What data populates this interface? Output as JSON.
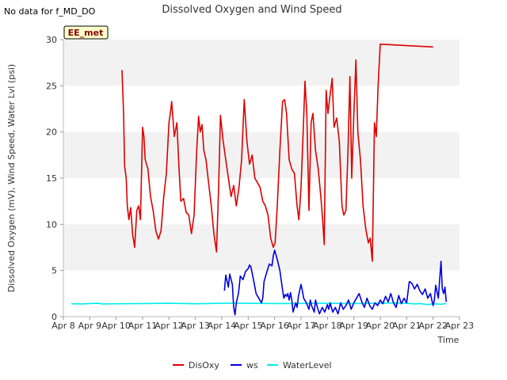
{
  "page": {
    "nodata_text": "No data for f_MD_DO",
    "badge_label": "EE_met"
  },
  "chart_data": {
    "type": "line",
    "title": "Dissolved Oxygen and Wind Speed",
    "xlabel": "Time",
    "ylabel": "Dissolved Oxygen (mV), Wind Speed, Water Lvl (psi)",
    "xlim": [
      8,
      23
    ],
    "ylim": [
      0,
      30
    ],
    "x_ticks": [
      8,
      9,
      10,
      11,
      12,
      13,
      14,
      15,
      16,
      17,
      18,
      19,
      20,
      21,
      22,
      23
    ],
    "x_tick_labels": [
      "Apr 8",
      "Apr 9",
      "Apr 10",
      "Apr 11",
      "Apr 12",
      "Apr 13",
      "Apr 14",
      "Apr 15",
      "Apr 16",
      "Apr 17",
      "Apr 18",
      "Apr 19",
      "Apr 20",
      "Apr 21",
      "Apr 22",
      "Apr 23"
    ],
    "y_ticks": [
      0,
      5,
      10,
      15,
      20,
      25,
      30
    ],
    "y_tick_labels": [
      "0",
      "5",
      "10",
      "15",
      "20",
      "25",
      "30"
    ],
    "grid": "horizontal bands",
    "legend_position": "bottom-center",
    "series": [
      {
        "name": "DisOxy",
        "color": "#dd0000",
        "x": [
          10.22,
          10.28,
          10.32,
          10.38,
          10.42,
          10.48,
          10.55,
          10.62,
          10.7,
          10.78,
          10.85,
          10.92,
          11.0,
          11.05,
          11.1,
          11.2,
          11.3,
          11.4,
          11.5,
          11.6,
          11.7,
          11.8,
          11.9,
          12.0,
          12.05,
          12.1,
          12.2,
          12.3,
          12.38,
          12.45,
          12.55,
          12.65,
          12.75,
          12.85,
          12.95,
          13.05,
          13.12,
          13.18,
          13.25,
          13.32,
          13.4,
          13.5,
          13.6,
          13.7,
          13.8,
          13.88,
          13.95,
          14.05,
          14.15,
          14.25,
          14.35,
          14.45,
          14.55,
          14.65,
          14.75,
          14.85,
          14.95,
          15.05,
          15.15,
          15.25,
          15.35,
          15.45,
          15.55,
          15.65,
          15.75,
          15.85,
          15.95,
          16.02,
          16.1,
          16.2,
          16.3,
          16.38,
          16.45,
          16.55,
          16.65,
          16.75,
          16.85,
          16.92,
          17.0,
          17.08,
          17.15,
          17.22,
          17.3,
          17.38,
          17.45,
          17.55,
          17.65,
          17.75,
          17.82,
          17.88,
          17.95,
          18.02,
          18.1,
          18.18,
          18.25,
          18.35,
          18.45,
          18.55,
          18.62,
          18.7,
          18.78,
          18.85,
          18.92,
          19.0,
          19.08,
          19.15,
          19.25,
          19.35,
          19.45,
          19.55,
          19.62,
          19.7,
          19.78,
          19.85,
          19.92,
          20.0,
          22.0
        ],
        "values": [
          26.7,
          22.0,
          16.3,
          15.0,
          12.0,
          10.5,
          11.8,
          9.0,
          7.5,
          11.5,
          12.0,
          10.5,
          20.5,
          19.5,
          17.0,
          16.0,
          13.0,
          11.5,
          9.3,
          8.4,
          9.3,
          13.0,
          15.5,
          21.0,
          22.0,
          23.3,
          19.5,
          21.0,
          16.0,
          12.5,
          12.8,
          11.3,
          11.0,
          9.0,
          11.0,
          18.0,
          21.7,
          20.0,
          20.8,
          18.0,
          17.0,
          14.5,
          12.0,
          9.0,
          7.0,
          14.0,
          21.8,
          19.0,
          17.0,
          15.0,
          13.0,
          14.2,
          12.0,
          14.0,
          17.0,
          23.5,
          19.0,
          16.5,
          17.5,
          15.0,
          14.5,
          14.0,
          12.5,
          12.0,
          11.0,
          8.5,
          7.5,
          8.0,
          12.0,
          18.0,
          23.3,
          23.5,
          22.0,
          17.0,
          16.0,
          15.5,
          12.0,
          10.5,
          14.0,
          20.0,
          25.5,
          22.0,
          11.5,
          21.0,
          22.0,
          18.0,
          16.0,
          13.0,
          10.5,
          7.8,
          24.5,
          22.0,
          24.0,
          25.8,
          20.5,
          21.5,
          19.0,
          12.0,
          11.0,
          11.5,
          18.0,
          26.0,
          15.0,
          22.0,
          27.8,
          20.0,
          17.0,
          12.0,
          9.5,
          8.0,
          8.5,
          6.0,
          21.0,
          19.5,
          25.0,
          29.5,
          29.2
        ]
      },
      {
        "name": "ws",
        "color": "#0000dd",
        "x": [
          14.1,
          14.15,
          14.25,
          14.3,
          14.4,
          14.45,
          14.5,
          14.55,
          14.62,
          14.65,
          14.7,
          14.8,
          14.9,
          15.0,
          15.05,
          15.1,
          15.2,
          15.3,
          15.4,
          15.5,
          15.55,
          15.6,
          15.7,
          15.8,
          15.9,
          15.95,
          16.0,
          16.1,
          16.2,
          16.3,
          16.35,
          16.4,
          16.45,
          16.5,
          16.55,
          16.6,
          16.65,
          16.7,
          16.8,
          16.85,
          16.9,
          17.0,
          17.05,
          17.1,
          17.2,
          17.3,
          17.35,
          17.4,
          17.5,
          17.55,
          17.6,
          17.7,
          17.8,
          17.9,
          18.0,
          18.05,
          18.1,
          18.2,
          18.3,
          18.4,
          18.5,
          18.6,
          18.7,
          18.8,
          18.9,
          19.0,
          19.1,
          19.2,
          19.3,
          19.4,
          19.5,
          19.6,
          19.7,
          19.8,
          19.9,
          20.0,
          20.1,
          20.2,
          20.3,
          20.4,
          20.5,
          20.6,
          20.7,
          20.8,
          20.9,
          21.0,
          21.1,
          21.2,
          21.3,
          21.4,
          21.5,
          21.6,
          21.7,
          21.8,
          21.9,
          22.0,
          22.05,
          22.1,
          22.2,
          22.3,
          22.35,
          22.4,
          22.45,
          22.5
        ],
        "values": [
          2.8,
          4.5,
          3.2,
          4.6,
          3.5,
          1.0,
          0.2,
          1.5,
          2.4,
          3.0,
          4.4,
          4.0,
          4.9,
          5.2,
          5.6,
          5.4,
          4.0,
          2.5,
          2.0,
          1.5,
          2.0,
          3.8,
          4.8,
          5.7,
          5.5,
          6.6,
          7.2,
          6.2,
          5.0,
          2.9,
          2.0,
          2.4,
          2.2,
          2.5,
          1.8,
          2.6,
          1.8,
          0.5,
          1.5,
          1.0,
          2.2,
          3.5,
          2.8,
          2.0,
          1.5,
          0.8,
          1.8,
          1.2,
          0.5,
          1.8,
          1.2,
          0.3,
          1.0,
          0.5,
          1.3,
          0.8,
          1.5,
          0.5,
          1.0,
          0.3,
          1.5,
          0.8,
          1.2,
          1.8,
          0.8,
          1.5,
          2.0,
          2.5,
          1.6,
          1.0,
          2.0,
          1.2,
          0.8,
          1.5,
          1.2,
          1.8,
          1.4,
          2.2,
          1.6,
          2.5,
          1.5,
          1.0,
          2.3,
          1.4,
          2.0,
          1.5,
          3.8,
          3.6,
          3.0,
          3.5,
          2.8,
          2.4,
          3.0,
          2.0,
          2.5,
          1.2,
          1.8,
          3.4,
          2.0,
          6.0,
          3.0,
          2.5,
          3.2,
          1.6
        ]
      },
      {
        "name": "WaterLevel",
        "color": "#00eeee",
        "x": [
          8.3,
          8.7,
          9.0,
          9.3,
          9.5,
          10.0,
          11.0,
          12.0,
          13.0,
          14.0,
          15.0,
          16.0,
          17.0,
          18.0,
          19.0,
          20.0,
          20.5,
          21.0,
          21.3,
          21.5,
          21.8,
          22.0,
          22.3,
          22.5
        ],
        "values": [
          1.4,
          1.38,
          1.42,
          1.45,
          1.38,
          1.4,
          1.42,
          1.45,
          1.4,
          1.45,
          1.45,
          1.42,
          1.43,
          1.45,
          1.42,
          1.45,
          1.48,
          1.45,
          1.38,
          1.42,
          1.3,
          1.4,
          1.35,
          1.42
        ]
      }
    ]
  }
}
